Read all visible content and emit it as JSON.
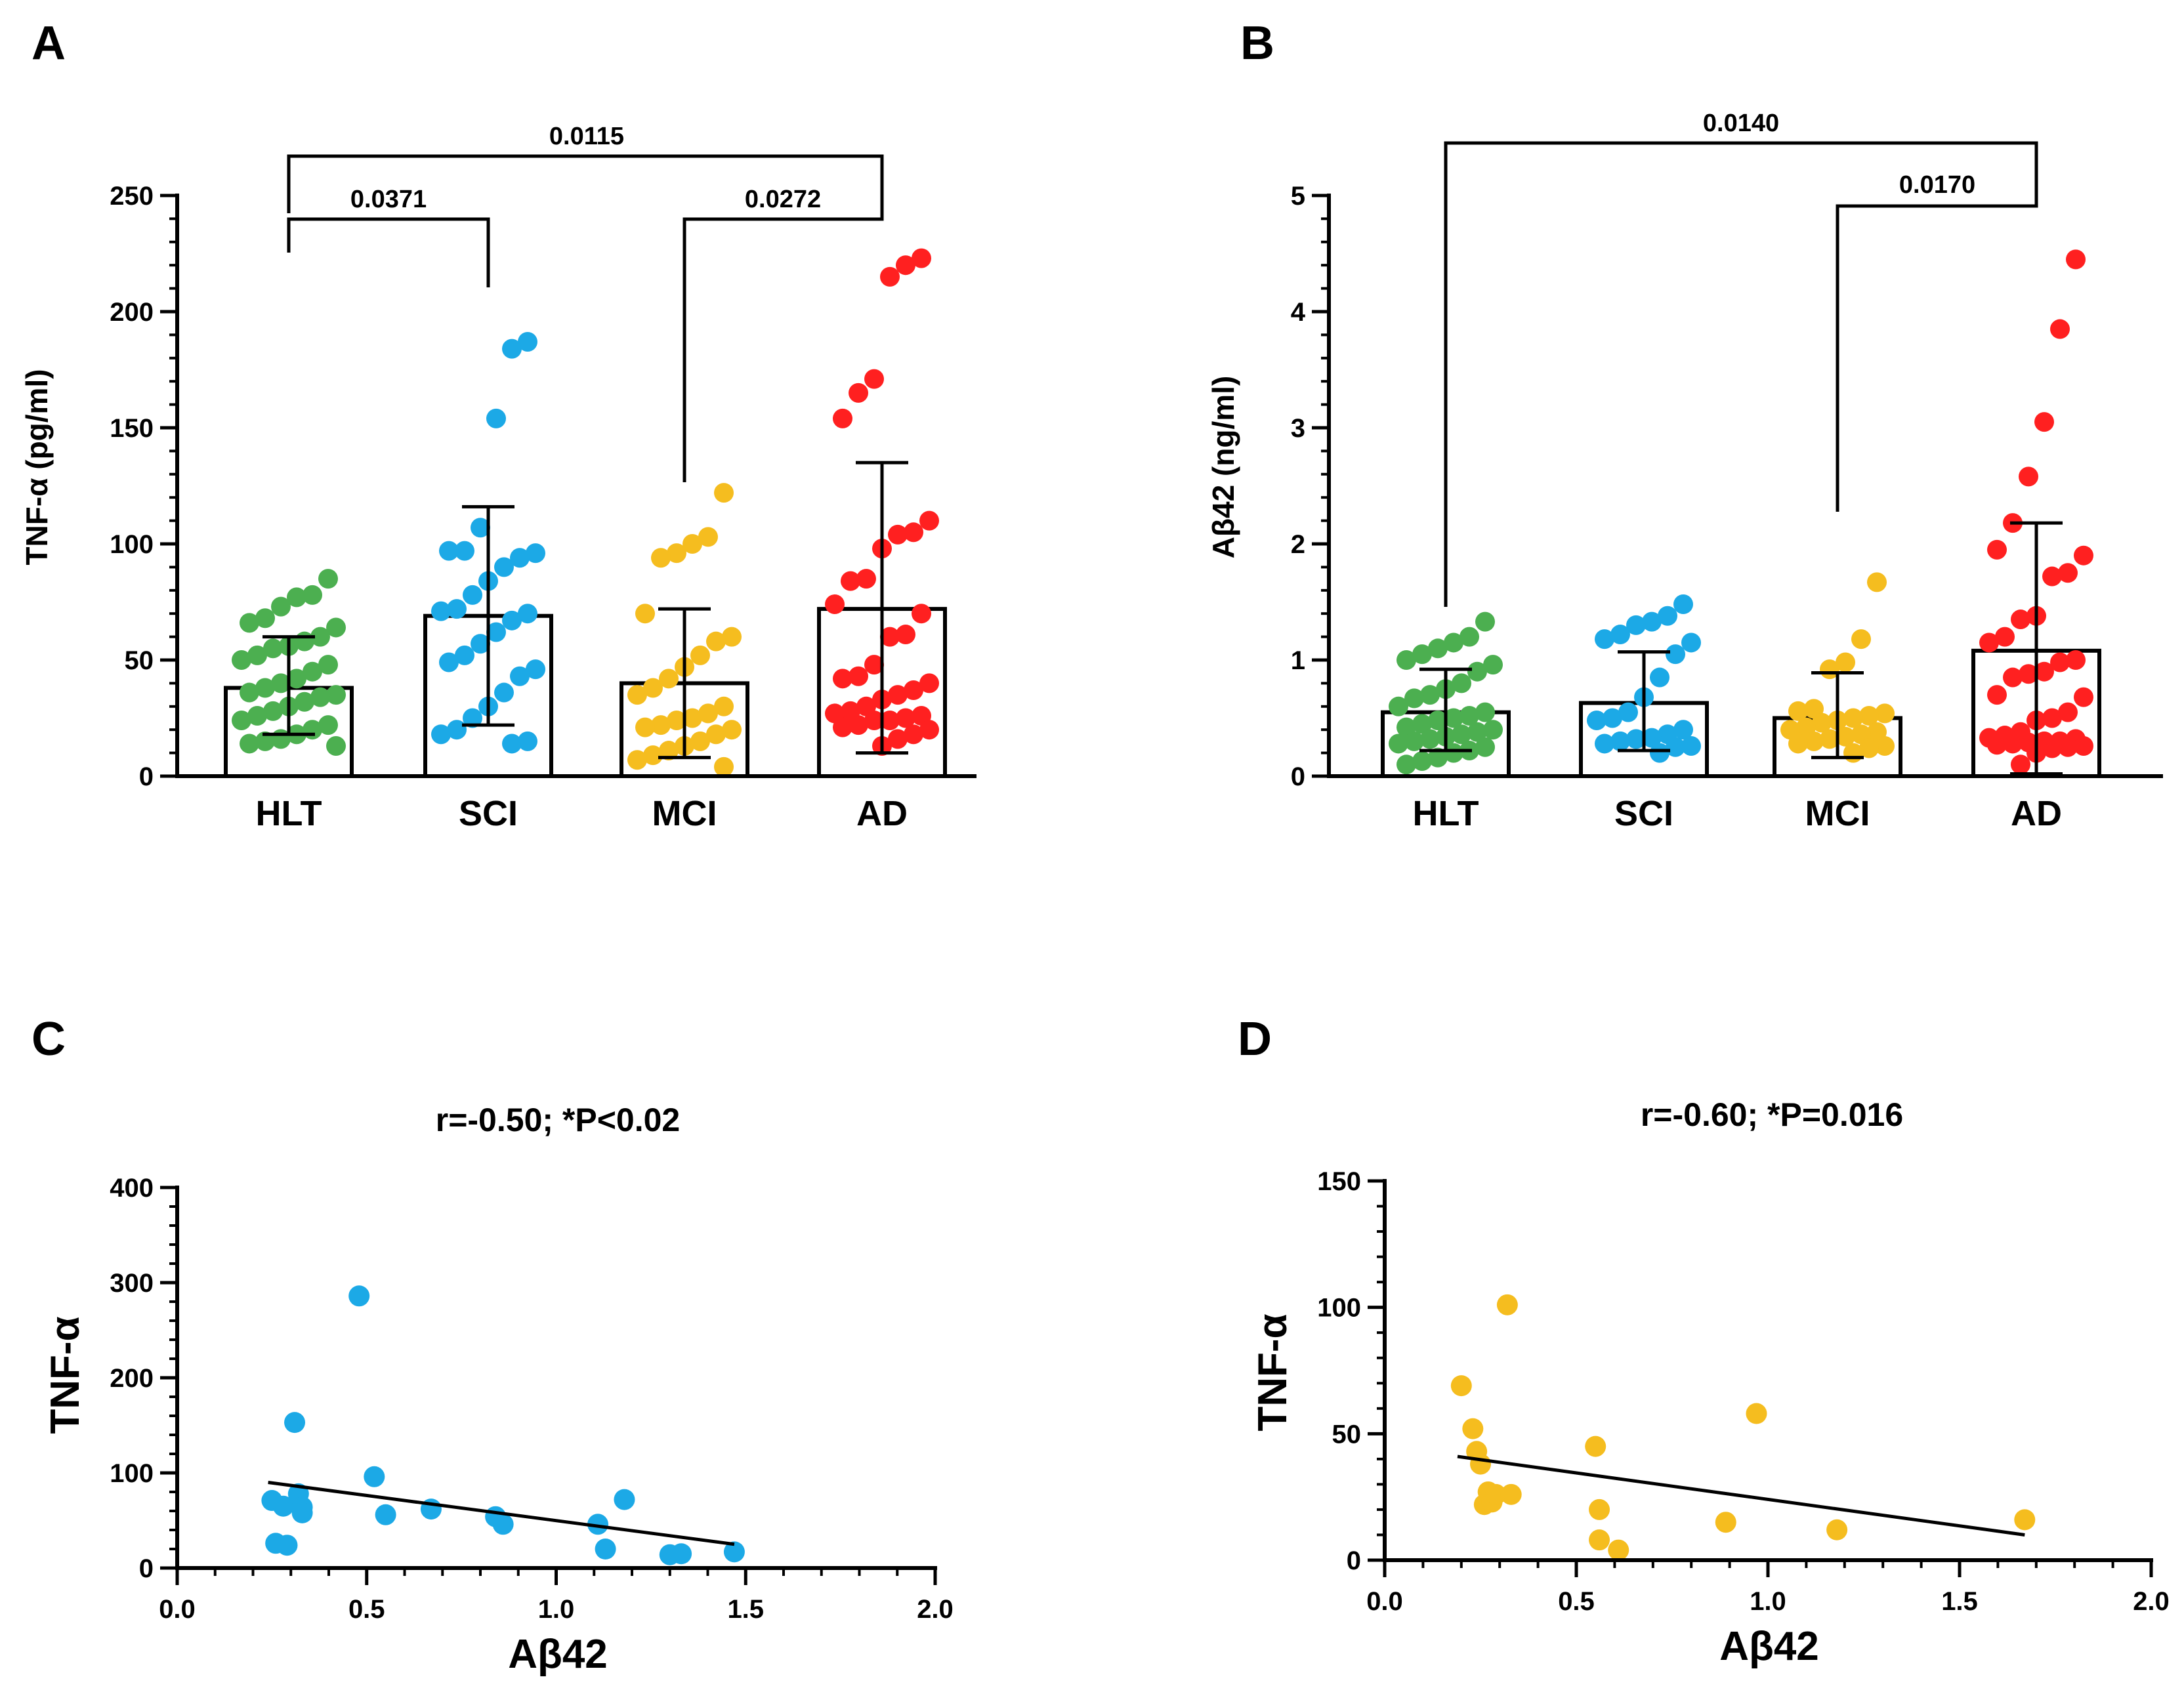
{
  "chart_data": [
    {
      "panel": "A",
      "type": "bar",
      "categories": [
        "HLT",
        "SCI",
        "MCI",
        "AD"
      ],
      "ylabel": "TNF-α (pg/ml)",
      "ylim": [
        0,
        250
      ],
      "yticks": [
        0,
        50,
        100,
        150,
        200,
        250
      ],
      "yminor": 10,
      "bar_means": [
        38,
        69,
        40,
        72
      ],
      "sd_upper": [
        60,
        116,
        72,
        135
      ],
      "sd_lower": [
        18,
        22,
        8,
        10
      ],
      "point_colors": [
        "#4caf50",
        "#1ca9e6",
        "#f5bd1f",
        "#ff2020"
      ],
      "points": [
        [
          85,
          78,
          77,
          73,
          68,
          66,
          64,
          60,
          58,
          56,
          55,
          52,
          50,
          48,
          45,
          42,
          40,
          38,
          36,
          35,
          34,
          32,
          30,
          28,
          26,
          24,
          22,
          20,
          18,
          16,
          15,
          14,
          13
        ],
        [
          187,
          184,
          154,
          107,
          97,
          97,
          96,
          94,
          90,
          84,
          78,
          72,
          71,
          70,
          67,
          62,
          57,
          52,
          49,
          46,
          43,
          36,
          30,
          25,
          20,
          18,
          15,
          14
        ],
        [
          122,
          103,
          100,
          96,
          94,
          70,
          60,
          58,
          52,
          47,
          42,
          38,
          35,
          30,
          27,
          25,
          24,
          22,
          21,
          20,
          18,
          15,
          13,
          11,
          9,
          7,
          4
        ],
        [
          223,
          220,
          215,
          171,
          165,
          154,
          110,
          105,
          104,
          98,
          85,
          84,
          74,
          70,
          61,
          60,
          48,
          43,
          42,
          40,
          37,
          35,
          33,
          30,
          28,
          27,
          26,
          25,
          24,
          24,
          22,
          21,
          20,
          18,
          16,
          13
        ]
      ],
      "comparisons": [
        {
          "from": "HLT",
          "to": "AD",
          "p": "0.0115"
        },
        {
          "from": "HLT",
          "to": "SCI",
          "p": "0.0371"
        },
        {
          "from": "MCI",
          "to": "AD",
          "p": "0.0272"
        }
      ]
    },
    {
      "panel": "B",
      "type": "bar",
      "categories": [
        "HLT",
        "SCI",
        "MCI",
        "AD"
      ],
      "ylabel": "Aβ42 (ng/ml)",
      "ylim": [
        0,
        5
      ],
      "yticks": [
        0,
        1,
        2,
        3,
        4,
        5
      ],
      "yminor": 0.2,
      "bar_means": [
        0.55,
        0.63,
        0.5,
        1.08
      ],
      "sd_upper": [
        0.92,
        1.07,
        0.89,
        2.18
      ],
      "sd_lower": [
        0.22,
        0.22,
        0.16,
        0.02
      ],
      "point_colors": [
        "#4caf50",
        "#1ca9e6",
        "#f5bd1f",
        "#ff2020"
      ],
      "points": [
        [
          1.33,
          1.2,
          1.15,
          1.1,
          1.05,
          1.0,
          0.96,
          0.9,
          0.8,
          0.75,
          0.7,
          0.67,
          0.6,
          0.55,
          0.52,
          0.5,
          0.48,
          0.45,
          0.42,
          0.4,
          0.38,
          0.36,
          0.34,
          0.32,
          0.3,
          0.28,
          0.25,
          0.22,
          0.2,
          0.16,
          0.13,
          0.1
        ],
        [
          1.48,
          1.38,
          1.33,
          1.3,
          1.22,
          1.18,
          1.15,
          1.05,
          0.85,
          0.68,
          0.55,
          0.5,
          0.48,
          0.4,
          0.36,
          0.33,
          0.32,
          0.3,
          0.28,
          0.26,
          0.25,
          0.2
        ],
        [
          1.67,
          1.18,
          0.98,
          0.92,
          0.58,
          0.56,
          0.54,
          0.52,
          0.5,
          0.48,
          0.46,
          0.42,
          0.4,
          0.38,
          0.36,
          0.34,
          0.32,
          0.3,
          0.28,
          0.26,
          0.24,
          0.2
        ],
        [
          4.45,
          3.85,
          3.05,
          2.58,
          2.18,
          1.95,
          1.9,
          1.75,
          1.72,
          1.38,
          1.35,
          1.2,
          1.15,
          1.0,
          0.98,
          0.9,
          0.88,
          0.85,
          0.7,
          0.68,
          0.55,
          0.5,
          0.48,
          0.38,
          0.35,
          0.33,
          0.32,
          0.3,
          0.3,
          0.29,
          0.28,
          0.27,
          0.26,
          0.25,
          0.24,
          0.2,
          0.1
        ]
      ],
      "comparisons": [
        {
          "from": "HLT",
          "to": "AD",
          "p": "0.0140"
        },
        {
          "from": "MCI",
          "to": "AD",
          "p": "0.0170"
        }
      ]
    },
    {
      "panel": "C",
      "type": "scatter",
      "title": "r=-0.50; *P<0.02",
      "xlabel": "Aβ42",
      "ylabel": "TNF-α",
      "xlim": [
        0,
        2
      ],
      "ylim": [
        0,
        400
      ],
      "xticks": [
        0.0,
        0.5,
        1.0,
        1.5,
        2.0
      ],
      "xtick_labels": [
        "0.0",
        "0.5",
        "1.0",
        "1.5",
        "2.0"
      ],
      "xminor": 0.1,
      "yticks": [
        0,
        100,
        200,
        300,
        400
      ],
      "yminor": 20,
      "color": "#1ca9e6",
      "x": [
        0.25,
        0.26,
        0.28,
        0.29,
        0.31,
        0.32,
        0.33,
        0.33,
        0.48,
        0.52,
        0.55,
        0.67,
        0.84,
        0.86,
        1.11,
        1.13,
        1.18,
        1.3,
        1.33,
        1.47
      ],
      "y": [
        71,
        26,
        65,
        24,
        153,
        78,
        64,
        58,
        286,
        96,
        56,
        62,
        54,
        46,
        46,
        20,
        72,
        14,
        15,
        17
      ],
      "fit": {
        "x": [
          0.24,
          1.47
        ],
        "y": [
          90,
          25
        ]
      }
    },
    {
      "panel": "D",
      "type": "scatter",
      "title": "r=-0.60; *P=0.016",
      "xlabel": "Aβ42",
      "ylabel": "TNF-α",
      "xlim": [
        0,
        2
      ],
      "ylim": [
        0,
        150
      ],
      "xticks": [
        0.0,
        0.5,
        1.0,
        1.5,
        2.0
      ],
      "xtick_labels": [
        "0.0",
        "0.5",
        "1.0",
        "1.5",
        "2.0"
      ],
      "xminor": 0.1,
      "yticks": [
        0,
        50,
        100,
        150
      ],
      "yminor": 10,
      "color": "#f5bd1f",
      "x": [
        0.2,
        0.23,
        0.24,
        0.25,
        0.26,
        0.27,
        0.28,
        0.29,
        0.32,
        0.33,
        0.55,
        0.56,
        0.56,
        0.61,
        0.89,
        0.97,
        1.18,
        1.67
      ],
      "y": [
        69,
        52,
        43,
        38,
        22,
        27,
        23,
        26,
        101,
        26,
        45,
        8,
        20,
        4,
        15,
        58,
        12,
        16
      ],
      "fit": {
        "x": [
          0.19,
          1.67
        ],
        "y": [
          41,
          10
        ]
      }
    }
  ]
}
